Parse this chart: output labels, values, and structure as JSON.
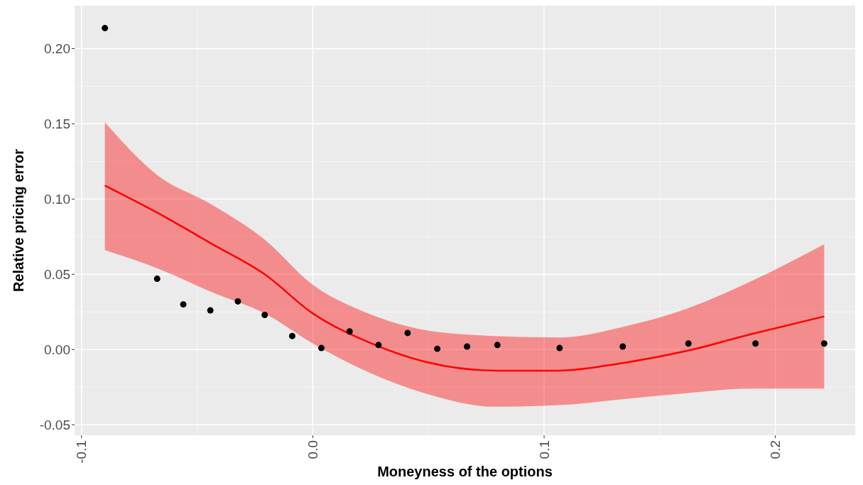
{
  "chart_data": {
    "type": "scatter",
    "xlabel": "Moneyness of the options",
    "ylabel": "Relative pricing error",
    "xlim": [
      -0.103,
      0.2345
    ],
    "ylim": [
      -0.057,
      0.2285
    ],
    "xticks": [
      -0.1,
      {
        "value": 0,
        "label": "0.0"
      },
      0.1,
      0.2
    ],
    "yticks": [
      {
        "value": -0.05,
        "label": "-0.05"
      },
      {
        "value": 0,
        "label": "0.00"
      },
      {
        "value": 0.05,
        "label": "0.05"
      },
      {
        "value": 0.1,
        "label": "0.10"
      },
      {
        "value": 0.15,
        "label": "0.15"
      },
      {
        "value": 0.2,
        "label": "0.20"
      }
    ],
    "grid": true,
    "series": [
      {
        "marker": "circle",
        "color": "#000000",
        "x": [
          -0.0899,
          -0.0673,
          -0.056,
          -0.0443,
          -0.0324,
          -0.0208,
          -0.0089,
          0.0037,
          0.0159,
          0.0284,
          0.041,
          0.0538,
          0.0667,
          0.0798,
          0.1067,
          0.134,
          0.1624,
          0.1914,
          0.2211
        ],
        "values": [
          0.2136,
          0.047,
          0.03,
          0.026,
          0.032,
          0.023,
          0.009,
          0.001,
          0.012,
          0.003,
          0.011,
          0.0005,
          0.002,
          0.003,
          0.001,
          0.002,
          0.004,
          0.004,
          0.004
        ]
      },
      {
        "type": "line",
        "color": "#ff0000",
        "x": [
          -0.0899,
          -0.0673,
          -0.0434,
          -0.0208,
          0,
          0.0239,
          0.0483,
          0.0789,
          0.1064,
          0.1339,
          0.1615,
          0.189,
          0.2211
        ],
        "values": [
          0.109,
          0.091,
          0.07,
          0.05,
          0.024,
          0.005,
          -0.008,
          -0.014,
          -0.014,
          -0.009,
          -0.001,
          0.01,
          0.022
        ],
        "lower": [
          0.066,
          0.054,
          0.038,
          0.024,
          0.004,
          -0.015,
          -0.029,
          -0.038,
          -0.037,
          -0.033,
          -0.029,
          -0.026,
          -0.026
        ],
        "upper": [
          0.151,
          0.116,
          0.096,
          0.073,
          0.043,
          0.024,
          0.013,
          0.009,
          0.008,
          0.015,
          0.027,
          0.045,
          0.07
        ]
      }
    ]
  }
}
